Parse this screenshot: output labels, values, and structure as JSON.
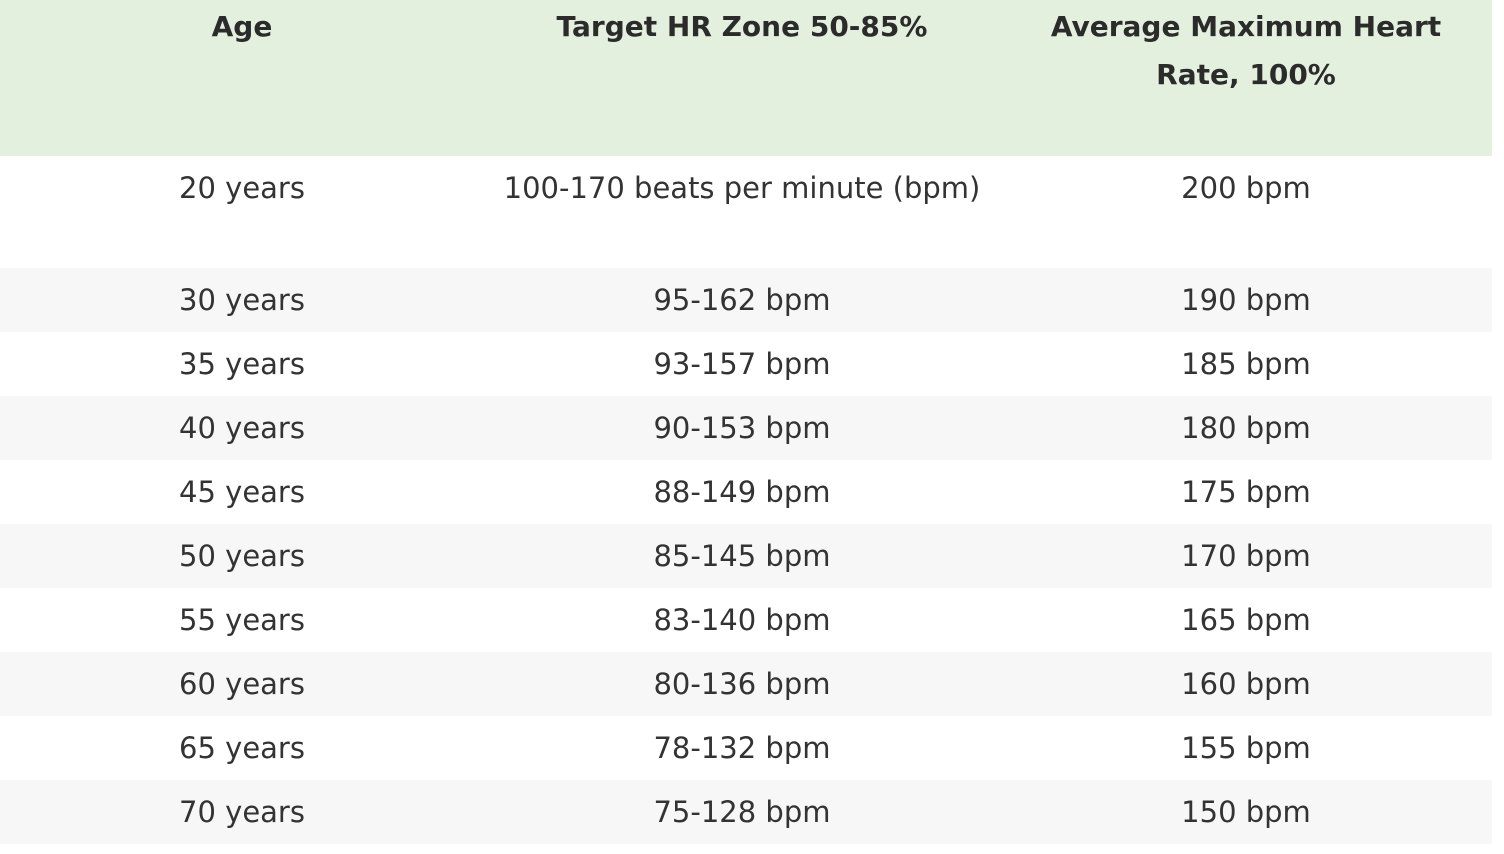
{
  "table": {
    "headers": {
      "age": "Age",
      "zone": "Target HR Zone 50-85%",
      "max": "Average Maximum Heart Rate, 100%"
    },
    "rows": [
      {
        "age": "20 years",
        "zone": "100-170 beats per minute (bpm)",
        "max": "200 bpm"
      },
      {
        "age": "30 years",
        "zone": "95-162 bpm",
        "max": "190 bpm"
      },
      {
        "age": "35 years",
        "zone": "93-157 bpm",
        "max": "185 bpm"
      },
      {
        "age": "40 years",
        "zone": "90-153 bpm",
        "max": "180 bpm"
      },
      {
        "age": "45 years",
        "zone": "88-149 bpm",
        "max": "175 bpm"
      },
      {
        "age": "50 years",
        "zone": "85-145 bpm",
        "max": "170 bpm"
      },
      {
        "age": "55 years",
        "zone": "83-140 bpm",
        "max": "165 bpm"
      },
      {
        "age": "60 years",
        "zone": "80-136 bpm",
        "max": "160 bpm"
      },
      {
        "age": "65 years",
        "zone": "78-132 bpm",
        "max": "155 bpm"
      },
      {
        "age": "70 years",
        "zone": "75-128 bpm",
        "max": "150 bpm"
      }
    ]
  },
  "colors": {
    "header_bg": "#e4f0de",
    "stripe_bg": "#f7f7f7",
    "text": "#2b2b2b"
  }
}
